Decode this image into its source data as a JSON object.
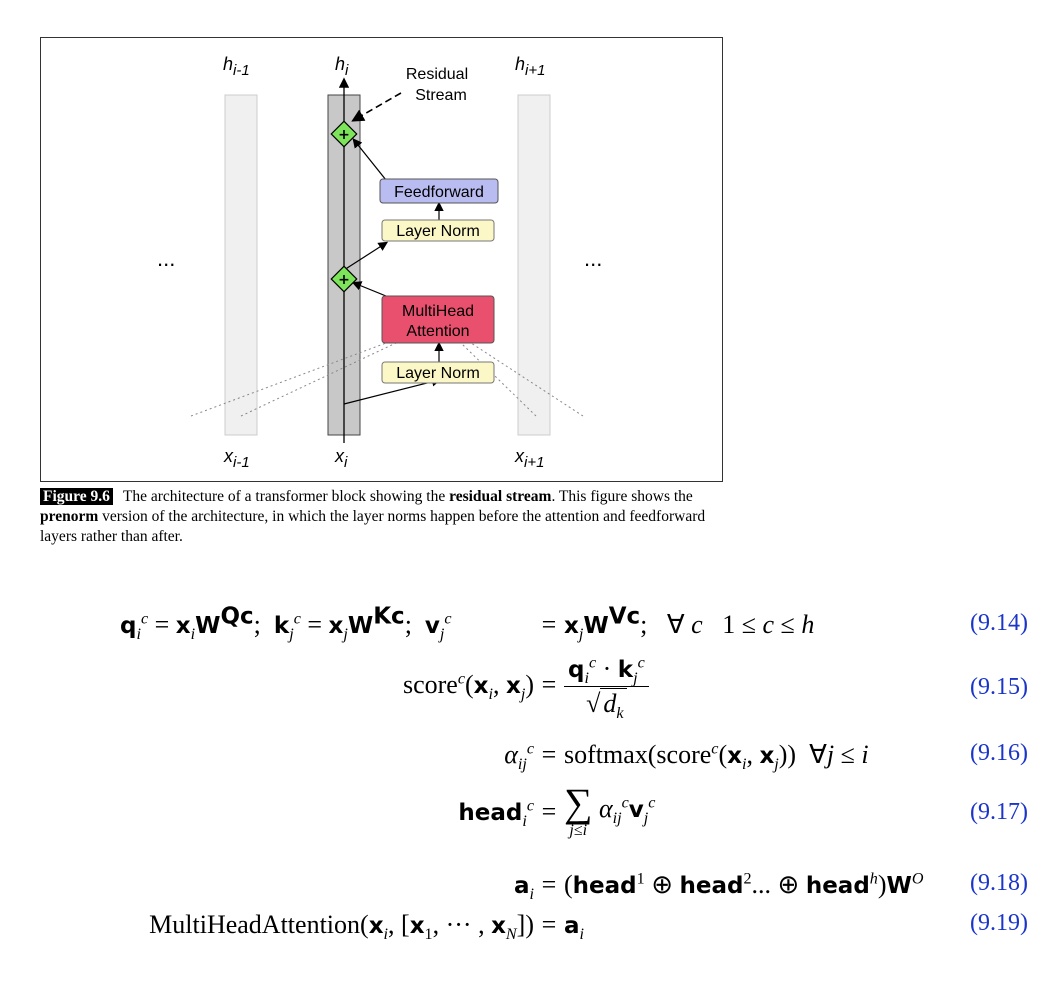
{
  "figure": {
    "labels": {
      "h_prev": "h",
      "h_prev_sub": "i-1",
      "h_cur": "h",
      "h_cur_sub": "i",
      "h_next": "h",
      "h_next_sub": "i+1",
      "x_prev": "x",
      "x_prev_sub": "i-1",
      "x_cur": "x",
      "x_cur_sub": "i",
      "x_next": "x",
      "x_next_sub": "i+1",
      "residual_line1": "Residual",
      "residual_line2": "Stream",
      "ellipsis_left": "...",
      "ellipsis_right": "...",
      "plus": "+"
    },
    "boxes": {
      "feedforward": "Feedforward",
      "layer_norm_top": "Layer Norm",
      "mha_line1": "MultiHead",
      "mha_line2": "Attention",
      "layer_norm_bottom": "Layer Norm"
    },
    "colors": {
      "feedforward_fill": "#b9bcf0",
      "layer_norm_fill": "#fbf7c6",
      "mha_fill": "#e8506e",
      "plus_fill": "#7de35a",
      "stream_fill": "#c8c8c8",
      "side_column_fill": "#f0f0f0"
    }
  },
  "caption": {
    "label": "Figure 9.6",
    "part1": "The architecture of a transformer block showing the ",
    "bold1": "residual stream",
    "part2": ". This figure shows the ",
    "bold2": "prenorm",
    "part3": " version of the architecture, in which the layer norms happen before the attention and feedforward layers rather than after."
  },
  "equations": {
    "e914": {
      "number": "(9.14)"
    },
    "e915": {
      "number": "(9.15)"
    },
    "e916": {
      "number": "(9.16)"
    },
    "e917": {
      "number": "(9.17)"
    },
    "e918": {
      "number": "(9.18)"
    },
    "e919": {
      "number": "(9.19)",
      "lhs_name": "MultiHeadAttention"
    }
  }
}
